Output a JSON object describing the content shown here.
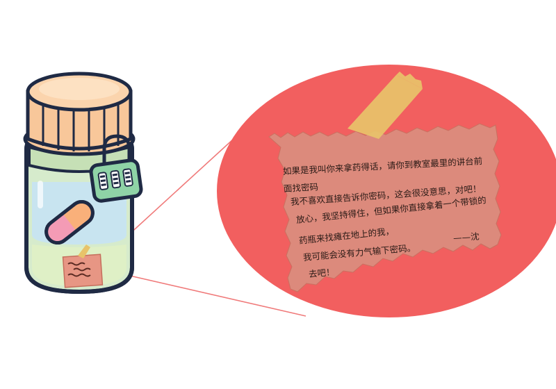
{
  "note": {
    "lines": [
      "如果是我叫你来拿药得话，请你到教室最里的讲台前",
      "面找密码",
      "我不喜欢直接告诉你密码，这会很没意思，对吧！",
      "放心，我坚持得住，但如果你直接拿着一个带锁的",
      "药瓶来找瘫在地上的我，",
      "我可能会没有力气输下密码。",
      "去吧！"
    ],
    "signature": "——沈"
  },
  "colors": {
    "bubble": "#f25f5f",
    "paper": "#dc8a7c",
    "tape": "#e8c36a",
    "lid": "#f8c79a",
    "bottle_body": "#d6ebcc",
    "lock": "#8fd3a6",
    "pill_pink": "#f49bb5",
    "pill_orange": "#f9b07a",
    "outline": "#1f2a44"
  }
}
